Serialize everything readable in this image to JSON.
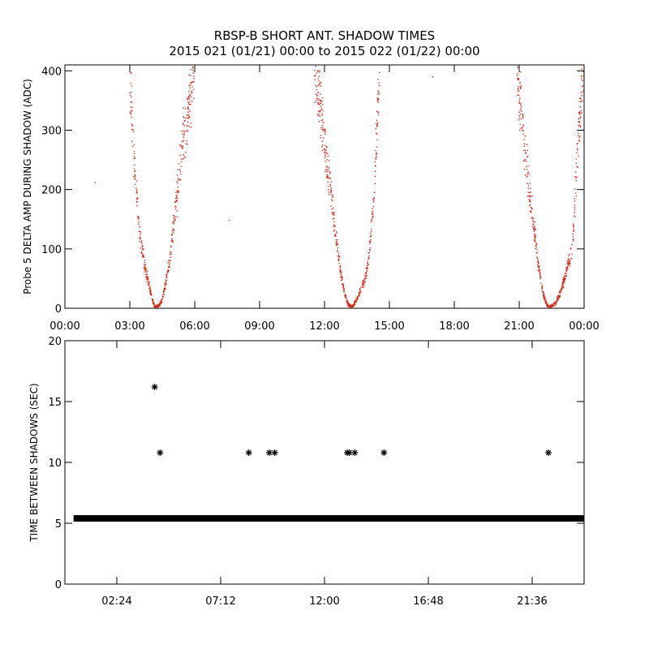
{
  "colors": {
    "red": "#d42a1a",
    "black": "#000000",
    "background": "#ffffff"
  },
  "title": {
    "line1": "RBSP-B SHORT ANT. SHADOW TIMES",
    "line2": "2015 021 (01/21) 00:00 to 2015 022 (01/22) 00:00"
  },
  "chart_data": [
    {
      "type": "scatter",
      "xlabel": "",
      "ylabel": "Probe 5 DELTA AMP DURING SHADOW (ADC)",
      "xlim": [
        0,
        24
      ],
      "ylim": [
        0,
        410
      ],
      "x_tick_values": [
        0,
        3,
        6,
        9,
        12,
        15,
        18,
        21,
        24
      ],
      "x_tick_labels": [
        "00:00",
        "03:00",
        "06:00",
        "09:00",
        "12:00",
        "15:00",
        "18:00",
        "21:00",
        "00:00"
      ],
      "y_tick_values": [
        0,
        100,
        200,
        300,
        400
      ],
      "y_tick_labels": [
        "0",
        "100",
        "200",
        "300",
        "400"
      ],
      "color": "#d42a1a",
      "grid": false,
      "minima_hours": [
        4.2,
        13.3,
        22.3
      ],
      "series": [
        {
          "x": [
            3.0,
            3.2,
            3.4,
            3.55,
            3.7,
            3.85,
            4.0,
            4.15,
            4.3,
            4.45,
            4.6,
            4.75,
            4.9,
            5.05,
            5.2,
            5.35,
            5.5,
            5.65,
            5.8,
            5.95,
            6.0
          ],
          "y": [
            400,
            250,
            150,
            100,
            70,
            45,
            20,
            3,
            3,
            10,
            30,
            60,
            100,
            150,
            200,
            250,
            290,
            320,
            360,
            390,
            400
          ]
        },
        {
          "x": [
            11.55,
            11.8,
            12.05,
            12.3,
            12.5,
            12.7,
            12.9,
            13.1,
            13.3,
            13.5,
            13.7,
            13.9,
            14.1,
            14.3,
            14.45,
            14.55
          ],
          "y": [
            400,
            340,
            260,
            190,
            130,
            70,
            30,
            5,
            3,
            15,
            35,
            50,
            100,
            200,
            320,
            400
          ]
        },
        {
          "x": [
            20.9,
            21.1,
            21.3,
            21.5,
            21.7,
            21.9,
            22.1,
            22.3,
            22.5,
            22.7,
            22.9,
            23.1,
            23.3,
            23.45,
            23.6,
            23.75,
            23.9,
            24.0
          ],
          "y": [
            400,
            330,
            260,
            190,
            130,
            70,
            25,
            4,
            3,
            10,
            25,
            50,
            80,
            100,
            200,
            300,
            380,
            400
          ]
        }
      ],
      "outliers": {
        "x": [
          1.4,
          7.6,
          17.0
        ],
        "y": [
          212,
          148,
          390
        ]
      }
    },
    {
      "type": "scatter",
      "xlabel": "",
      "ylabel": "TIME BETWEEN SHADOWS (SEC)",
      "xlim": [
        0,
        24
      ],
      "ylim": [
        0,
        20
      ],
      "x_tick_values": [
        2.4,
        7.2,
        12.0,
        16.8,
        21.6
      ],
      "x_tick_labels": [
        "02:24",
        "07:12",
        "12:00",
        "16:48",
        "21:36"
      ],
      "y_tick_values": [
        0,
        5,
        10,
        15,
        20
      ],
      "y_tick_labels": [
        "0",
        "5",
        "10",
        "15",
        "20"
      ],
      "color": "#000000",
      "marker": "*",
      "baseline_value": 5.4,
      "baseline_from": 0.4,
      "baseline_to": 24.0,
      "points": [
        {
          "x": 4.15,
          "y": 16.2
        },
        {
          "x": 4.4,
          "y": 10.8
        },
        {
          "x": 8.5,
          "y": 10.8
        },
        {
          "x": 9.45,
          "y": 10.8
        },
        {
          "x": 9.7,
          "y": 10.8
        },
        {
          "x": 13.05,
          "y": 10.8
        },
        {
          "x": 13.15,
          "y": 10.8
        },
        {
          "x": 13.4,
          "y": 10.8
        },
        {
          "x": 14.75,
          "y": 10.8
        },
        {
          "x": 22.35,
          "y": 10.8
        }
      ]
    }
  ]
}
